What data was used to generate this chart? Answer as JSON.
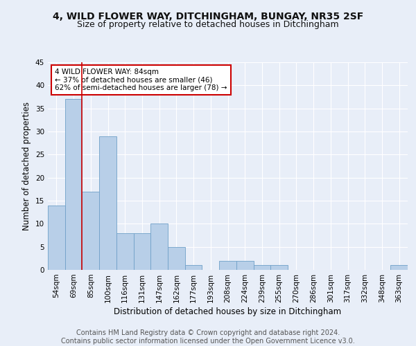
{
  "title_line1": "4, WILD FLOWER WAY, DITCHINGHAM, BUNGAY, NR35 2SF",
  "title_line2": "Size of property relative to detached houses in Ditchingham",
  "xlabel": "Distribution of detached houses by size in Ditchingham",
  "ylabel": "Number of detached properties",
  "categories": [
    "54sqm",
    "69sqm",
    "85sqm",
    "100sqm",
    "116sqm",
    "131sqm",
    "147sqm",
    "162sqm",
    "177sqm",
    "193sqm",
    "208sqm",
    "224sqm",
    "239sqm",
    "255sqm",
    "270sqm",
    "286sqm",
    "301sqm",
    "317sqm",
    "332sqm",
    "348sqm",
    "363sqm"
  ],
  "values": [
    14,
    37,
    17,
    29,
    8,
    8,
    10,
    5,
    1,
    0,
    2,
    2,
    1,
    1,
    0,
    0,
    0,
    0,
    0,
    0,
    1
  ],
  "bar_color": "#b8cfe8",
  "bar_edge_color": "#6fa0c8",
  "bar_edge_width": 0.6,
  "vline_bar_index": 2,
  "vline_color": "#cc0000",
  "annotation_text": "4 WILD FLOWER WAY: 84sqm\n← 37% of detached houses are smaller (46)\n62% of semi-detached houses are larger (78) →",
  "annotation_box_color": "#ffffff",
  "annotation_box_edge": "#cc0000",
  "annotation_fontsize": 7.5,
  "ylim": [
    0,
    45
  ],
  "yticks": [
    0,
    5,
    10,
    15,
    20,
    25,
    30,
    35,
    40,
    45
  ],
  "footer_text": "Contains HM Land Registry data © Crown copyright and database right 2024.\nContains public sector information licensed under the Open Government Licence v3.0.",
  "bg_color": "#e8eef8",
  "plot_bg_color": "#e8eef8",
  "grid_color": "#ffffff",
  "title_fontsize": 10,
  "subtitle_fontsize": 9,
  "axis_label_fontsize": 8.5,
  "tick_fontsize": 7.5,
  "footer_fontsize": 7
}
